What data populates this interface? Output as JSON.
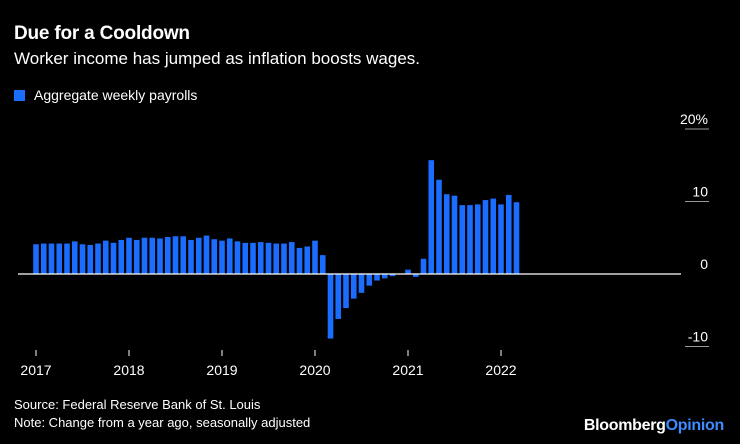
{
  "header": {
    "title": "Due for a Cooldown",
    "subtitle": "Worker income has jumped as inflation boosts wages."
  },
  "legend": {
    "label": "Aggregate weekly payrolls"
  },
  "colors": {
    "bar": "#1a6dff",
    "background": "#000000",
    "text": "#ffffff",
    "gridline": "#9a9a9a",
    "zero_line": "#ffffff",
    "logo_accent": "#3d8bff"
  },
  "footer": {
    "source": "Source: Federal Reserve Bank of St. Louis",
    "note": "Note: Change from a year ago, seasonally adjusted"
  },
  "logo": {
    "brand": "Bloomberg",
    "section": "Opinion"
  },
  "chart_data": {
    "type": "bar",
    "title": "Due for a Cooldown",
    "subtitle": "Worker income has jumped as inflation boosts wages.",
    "xlabel": "",
    "ylabel": "",
    "ylim": [
      -10,
      20
    ],
    "y_ticks": [
      {
        "value": 20,
        "label": "20%"
      },
      {
        "value": 10,
        "label": "10"
      },
      {
        "value": 0,
        "label": "0"
      },
      {
        "value": -10,
        "label": "-10"
      }
    ],
    "x_tick_labels": [
      {
        "year": "2017",
        "index": 0
      },
      {
        "year": "2018",
        "index": 12
      },
      {
        "year": "2019",
        "index": 24
      },
      {
        "year": "2020",
        "index": 36
      },
      {
        "year": "2021",
        "index": 48
      },
      {
        "year": "2022",
        "index": 60
      }
    ],
    "legend_position": "top-left",
    "grid": true,
    "series": [
      {
        "name": "Aggregate weekly payrolls",
        "categories": [
          "Jan 2017",
          "Feb 2017",
          "Mar 2017",
          "Apr 2017",
          "May 2017",
          "Jun 2017",
          "Jul 2017",
          "Aug 2017",
          "Sep 2017",
          "Oct 2017",
          "Nov 2017",
          "Dec 2017",
          "Jan 2018",
          "Feb 2018",
          "Mar 2018",
          "Apr 2018",
          "May 2018",
          "Jun 2018",
          "Jul 2018",
          "Aug 2018",
          "Sep 2018",
          "Oct 2018",
          "Nov 2018",
          "Dec 2018",
          "Jan 2019",
          "Feb 2019",
          "Mar 2019",
          "Apr 2019",
          "May 2019",
          "Jun 2019",
          "Jul 2019",
          "Aug 2019",
          "Sep 2019",
          "Oct 2019",
          "Nov 2019",
          "Dec 2019",
          "Jan 2020",
          "Feb 2020",
          "Mar 2020",
          "Apr 2020",
          "May 2020",
          "Jun 2020",
          "Jul 2020",
          "Aug 2020",
          "Sep 2020",
          "Oct 2020",
          "Nov 2020",
          "Dec 2020",
          "Jan 2021",
          "Feb 2021",
          "Mar 2021",
          "Apr 2021",
          "May 2021",
          "Jun 2021",
          "Jul 2021",
          "Aug 2021",
          "Sep 2021",
          "Oct 2021",
          "Nov 2021",
          "Dec 2021",
          "Jan 2022",
          "Feb 2022",
          "Mar 2022"
        ],
        "values": [
          4.1,
          4.2,
          4.2,
          4.2,
          4.2,
          4.5,
          4.1,
          4.0,
          4.2,
          4.6,
          4.3,
          4.7,
          5.0,
          4.7,
          5.0,
          5.0,
          4.9,
          5.1,
          5.2,
          5.2,
          4.7,
          5.0,
          5.3,
          4.8,
          4.6,
          4.9,
          4.5,
          4.3,
          4.3,
          4.4,
          4.3,
          4.2,
          4.2,
          4.4,
          3.6,
          3.8,
          4.6,
          2.6,
          -8.9,
          -6.2,
          -4.7,
          -3.4,
          -2.6,
          -1.6,
          -0.9,
          -0.6,
          -0.3,
          0.0,
          0.6,
          -0.4,
          2.1,
          15.7,
          13.0,
          11.0,
          10.8,
          9.5,
          9.5,
          9.6,
          10.2,
          10.4,
          9.6,
          10.9,
          9.9
        ]
      }
    ]
  }
}
